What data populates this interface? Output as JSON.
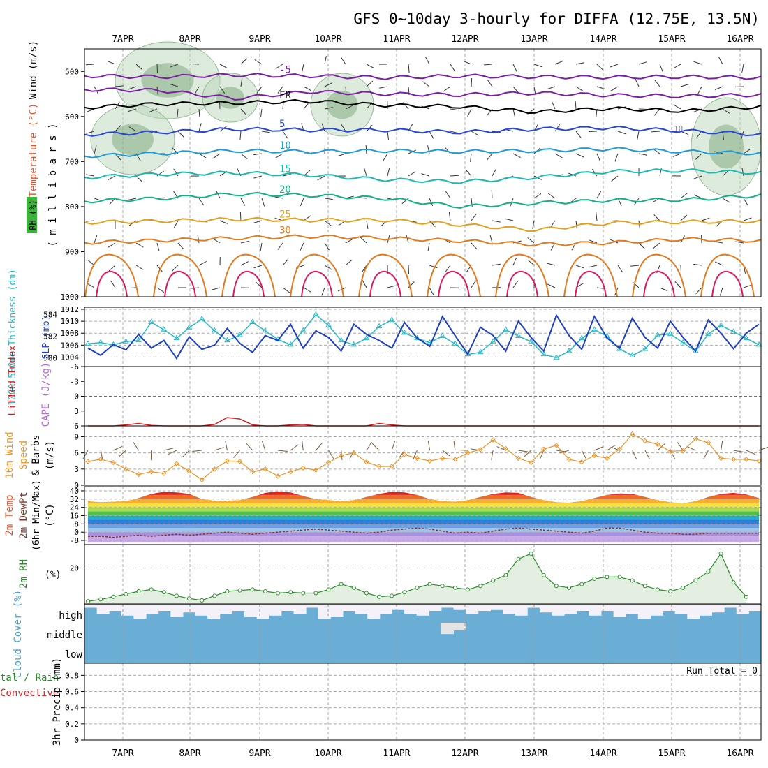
{
  "title": "GFS 0~10day 3-hourly for DIFFA (12.75E, 13.5N)",
  "dates": [
    "7APR",
    "8APR",
    "9APR",
    "10APR",
    "11APR",
    "12APR",
    "13APR",
    "14APR",
    "15APR",
    "16APR"
  ],
  "chart_data": [
    {
      "type": "heatmap",
      "panel": "upper-air cross section",
      "ylabels": [
        {
          "text": "Wind (m/s)",
          "color": "#000000"
        },
        {
          "text": "Temperature (°C)",
          "color": "#e8502a"
        },
        {
          "text": "RH (%)",
          "color": "#000000"
        },
        {
          "text": "( m i l l i b a r s )",
          "color": "#000000"
        }
      ],
      "yticks": [
        500,
        600,
        700,
        800,
        900,
        1000
      ],
      "ylim": [
        450,
        1000
      ],
      "y_inverted": true,
      "contours": [
        {
          "label": "-5",
          "color": "#7b1fa2",
          "levels": [
            510,
            512,
            508,
            510,
            514,
            510,
            512,
            513,
            512,
            514
          ]
        },
        {
          "label": "",
          "color": "#7b1fa2",
          "levels": [
            540,
            542,
            560,
            545,
            550,
            552,
            548,
            553,
            555,
            552
          ]
        },
        {
          "label": "FR",
          "color": "#000000",
          "levels": [
            580,
            572,
            570,
            566,
            575,
            578,
            590,
            582,
            588,
            578
          ]
        },
        {
          "label": "5",
          "color": "#2746d6",
          "levels": [
            640,
            635,
            628,
            630,
            630,
            635,
            628,
            625,
            632,
            640
          ]
        },
        {
          "label": "10",
          "color": "#1f9ad6",
          "levels": [
            688,
            682,
            676,
            678,
            676,
            678,
            676,
            672,
            678,
            682
          ]
        },
        {
          "label": "15",
          "color": "#1bb8b0",
          "levels": [
            735,
            728,
            725,
            730,
            740,
            745,
            735,
            722,
            720,
            725
          ]
        },
        {
          "label": "20",
          "color": "#15b089",
          "levels": [
            788,
            782,
            772,
            775,
            782,
            800,
            792,
            786,
            785,
            775
          ]
        },
        {
          "label": "25",
          "color": "#e0a020",
          "levels": [
            835,
            832,
            828,
            830,
            830,
            840,
            852,
            836,
            834,
            832
          ]
        },
        {
          "label": "30",
          "color": "#e07a20",
          "levels": [
            880,
            875,
            870,
            866,
            870,
            876,
            884,
            880,
            872,
            876
          ]
        }
      ],
      "rh_label_10": "10"
    },
    {
      "type": "line",
      "panel": "thickness and slp",
      "ylabel_left": "1000-500mb Thickness (dm)",
      "ylabel_right": "SLP (mb)",
      "yticks_left": [
        580,
        582,
        584
      ],
      "yticks_right": [
        1004,
        1006,
        1008,
        1010,
        1012
      ],
      "series": [
        {
          "name": "1000-500mb Thickness (dm)",
          "color": "#27b8c8",
          "values": [
            581.3,
            581.4,
            581.2,
            581.5,
            581.6,
            583.3,
            582.6,
            581.8,
            582.8,
            583.6,
            582.5,
            581.6,
            582.1,
            583.3,
            582.5,
            581.7,
            581.2,
            582.5,
            584.0,
            583.0,
            581.6,
            581.2,
            581.8,
            582.9,
            583.5,
            582.3,
            581.8,
            581.4,
            582.0,
            581.3,
            580.3,
            580.5,
            581.5,
            582.6,
            582.0,
            581.5,
            580.3,
            580.0,
            580.6,
            581.8,
            582.6,
            582.0,
            580.8,
            580.2,
            580.8,
            582.1,
            582.2,
            581.4,
            580.6,
            582.2,
            583.0,
            582.4,
            581.8,
            581.2
          ]
        },
        {
          "name": "SLP (mb)",
          "color": "#1e3fbf",
          "values": [
            1005.5,
            1004.3,
            1006.1,
            1005.2,
            1007.8,
            1005.5,
            1006.8,
            1003.8,
            1007.4,
            1005.3,
            1006.0,
            1008.8,
            1006.3,
            1004.8,
            1007.6,
            1006.8,
            1009.5,
            1005.5,
            1008.4,
            1007.3,
            1005.0,
            1009.5,
            1007.8,
            1006.8,
            1005.5,
            1009.8,
            1007.2,
            1005.8,
            1010.8,
            1007.6,
            1004.5,
            1009.0,
            1007.6,
            1005.0,
            1010.0,
            1007.3,
            1005.0,
            1011.0,
            1007.6,
            1005.3,
            1010.8,
            1007.2,
            1005.5,
            1010.5,
            1007.3,
            1005.5,
            1010.0,
            1007.3,
            1005.0,
            1010.2,
            1008.0,
            1005.4,
            1008.0,
            1009.5
          ]
        }
      ]
    },
    {
      "type": "line",
      "panel": "lifted index and cape",
      "ylabel_left": "Lifted Index",
      "ylabel_right": "CAPE (J/kg)",
      "yticks": [
        -6,
        -3,
        0,
        3,
        6
      ],
      "ylim": [
        -6,
        6
      ],
      "series": [
        {
          "name": "CAPE (J/kg)",
          "color": "#d61f1f",
          "values": [
            6,
            6,
            6,
            5.8,
            5.5,
            5.9,
            6,
            6,
            6,
            6,
            5.7,
            4.3,
            4.6,
            5.8,
            6,
            6,
            5.8,
            5.7,
            6,
            6,
            6,
            6,
            6,
            5.5,
            5.8,
            6,
            6,
            6,
            6,
            6,
            6,
            6,
            6,
            6,
            6,
            6,
            6,
            6,
            6,
            6,
            6,
            6,
            6,
            6,
            6,
            6,
            6,
            6,
            6,
            6,
            6,
            6,
            6,
            6
          ]
        }
      ]
    },
    {
      "type": "line",
      "panel": "10m wind",
      "ylabel": "10m Wind Speed & Barbs (m/s)",
      "yticks": [
        0,
        3,
        6,
        9
      ],
      "ylim": [
        0,
        11
      ],
      "series": [
        {
          "name": "10m Wind Speed (m/s)",
          "color": "#e8962a",
          "values": [
            4.4,
            4.8,
            4.2,
            3.0,
            2.0,
            2.5,
            2.2,
            4.0,
            2.6,
            1.0,
            3.0,
            4.5,
            4.4,
            2.5,
            3.0,
            1.7,
            2.5,
            3.2,
            2.8,
            4.2,
            5.5,
            6.0,
            4.3,
            3.5,
            3.5,
            5.7,
            5.0,
            4.5,
            5.0,
            4.8,
            6.0,
            6.6,
            8.4,
            6.8,
            5.0,
            4.2,
            6.7,
            7.4,
            4.8,
            4.3,
            5.5,
            5.0,
            6.7,
            9.5,
            8.2,
            7.6,
            6.3,
            6.4,
            8.6,
            7.9,
            5.0,
            4.8,
            4.8,
            4.5
          ]
        }
      ]
    },
    {
      "type": "area",
      "panel": "2m temperature",
      "ylabel": "2m Temp 2m DewPt (6hr Min/Max) (°C)",
      "yticks": [
        -8,
        0,
        8,
        16,
        24,
        32,
        40
      ],
      "ylim": [
        -10,
        42
      ],
      "series": [
        {
          "name": "2m Temp",
          "values": [
            30,
            29,
            29.5,
            30,
            33,
            37,
            39,
            38.5,
            37,
            32,
            30.5,
            30.5,
            31,
            34,
            38,
            39.5,
            38.5,
            35,
            32,
            31,
            30,
            31,
            34,
            37,
            39,
            38.5,
            36,
            32,
            30,
            29.5,
            31,
            34,
            37,
            38.5,
            38,
            34,
            31,
            29,
            28.5,
            30,
            33,
            36,
            37.5,
            37,
            34,
            31,
            29,
            28,
            30,
            34,
            37,
            38,
            36.5,
            33
          ]
        },
        {
          "name": "2m DewPt",
          "color": "#7a3b2e",
          "values": [
            -4,
            -4,
            -5,
            -4,
            -3,
            -4,
            -3,
            -2,
            -3,
            -2,
            -1,
            0,
            -1,
            -2,
            -1,
            0,
            1,
            2,
            3,
            2,
            1,
            0,
            -1,
            0,
            2,
            3,
            4,
            3,
            1,
            -1,
            0,
            -1,
            1,
            3,
            4,
            3,
            2,
            1,
            0,
            -1,
            1,
            4,
            4,
            2,
            0,
            -1,
            -1,
            -2,
            -2,
            -1,
            -1,
            -1,
            -1,
            -1
          ]
        }
      ]
    },
    {
      "type": "area",
      "panel": "2m relative humidity",
      "ylabel": "2m RH",
      "unit": "(%)",
      "yticks": [
        20
      ],
      "ylim": [
        0,
        33
      ],
      "series": [
        {
          "name": "2m RH",
          "color": "#2e8b2e",
          "values": [
            1.5,
            2.5,
            4,
            5.5,
            7,
            8,
            6.5,
            4.5,
            3,
            2,
            4.5,
            7,
            7.5,
            8,
            7,
            6,
            6.5,
            6,
            6,
            8,
            11,
            9,
            6,
            4,
            4.5,
            6.5,
            9,
            11,
            10,
            9,
            8,
            10,
            13,
            16,
            25,
            28,
            16,
            10,
            9,
            11,
            14,
            15,
            15,
            13,
            10,
            8,
            7,
            9,
            13,
            18,
            28,
            12,
            4
          ]
        }
      ]
    },
    {
      "type": "area",
      "panel": "cloud cover",
      "ylabel": "Cloud Cover (%)",
      "levels": [
        "high",
        "middle",
        "low"
      ],
      "series": [
        {
          "name": "high",
          "values": [
            80,
            40,
            60,
            30,
            10,
            40,
            60,
            20,
            50,
            30,
            10,
            40,
            60,
            20,
            10,
            30,
            60,
            40,
            80,
            10,
            20,
            60,
            40,
            10,
            40,
            70,
            40,
            30,
            60,
            80,
            70,
            40,
            60,
            70,
            40,
            30,
            80,
            50,
            30,
            40,
            60,
            30,
            60,
            20,
            40,
            10,
            30,
            60,
            40,
            10,
            30,
            50,
            80,
            40,
            60
          ]
        },
        {
          "name": "middle",
          "values": [
            0,
            0,
            0,
            0,
            0,
            0,
            0,
            0,
            0,
            0,
            0,
            0,
            0,
            0,
            0,
            0,
            0,
            0,
            0,
            0,
            0,
            0,
            0,
            0,
            0,
            0,
            0,
            0,
            0,
            60,
            40,
            0,
            0,
            0,
            0,
            0,
            0,
            0,
            0,
            0,
            0,
            0,
            0,
            0,
            0,
            0,
            0,
            0,
            0,
            0,
            0,
            0,
            0,
            0,
            0
          ]
        },
        {
          "name": "low",
          "values": [
            0,
            0,
            0,
            0,
            0,
            0,
            0,
            0,
            0,
            0,
            0,
            0,
            0,
            0,
            0,
            0,
            0,
            0,
            0,
            0,
            0,
            0,
            0,
            0,
            0,
            0,
            0,
            0,
            0,
            0,
            0,
            0,
            0,
            0,
            0,
            0,
            0,
            0,
            0,
            0,
            0,
            0,
            0,
            0,
            0,
            0,
            0,
            0,
            0,
            0,
            0,
            0,
            0,
            0,
            0
          ]
        }
      ]
    },
    {
      "type": "bar",
      "panel": "precipitation",
      "ylabel_left": "tal / Rain",
      "ylabel_left2": "Convective",
      "ylabel": "3hr Precip (mm)",
      "yticks": [
        0,
        0.2,
        0.4,
        0.6,
        0.8
      ],
      "ylim": [
        0,
        0.95
      ],
      "annotation": "Run Total = 0",
      "series": [
        {
          "name": "Total / Rain",
          "color": "#2e8b2e",
          "values": []
        },
        {
          "name": "Convective",
          "color": "#d62728",
          "values": []
        }
      ]
    }
  ]
}
